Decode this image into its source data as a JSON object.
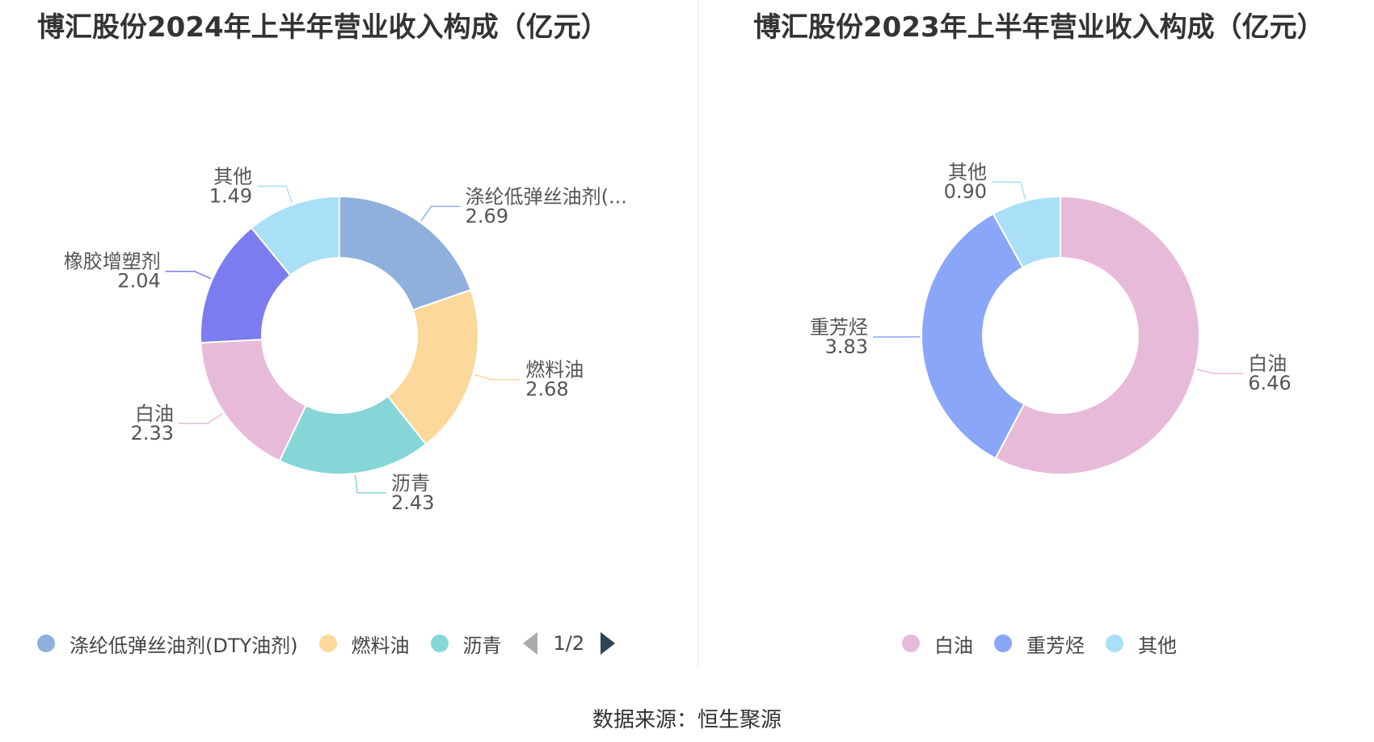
{
  "source_text": "数据来源：恒生聚源",
  "chart_data": [
    {
      "type": "pie",
      "title": "博汇股份2024年上半年营业收入构成（亿元）",
      "unit": "亿元",
      "slices": [
        {
          "name": "涤纶低弹丝油剂(DTY油剂)",
          "label": "涤纶低弹丝油剂(...",
          "value": 2.69,
          "value_text": "2.69",
          "color": "#8fb0dc"
        },
        {
          "name": "燃料油",
          "label": "燃料油",
          "value": 2.68,
          "value_text": "2.68",
          "color": "#fcd89b"
        },
        {
          "name": "沥青",
          "label": "沥青",
          "value": 2.43,
          "value_text": "2.43",
          "color": "#86d6d8"
        },
        {
          "name": "白油",
          "label": "白油",
          "value": 2.33,
          "value_text": "2.33",
          "color": "#e8bad9"
        },
        {
          "name": "橡胶增塑剂",
          "label": "橡胶增塑剂",
          "value": 2.04,
          "value_text": "2.04",
          "color": "#7b7cf0"
        },
        {
          "name": "其他",
          "label": "其他",
          "value": 1.49,
          "value_text": "1.49",
          "color": "#a9dff7"
        }
      ],
      "legend": {
        "items": [
          {
            "label": "涤纶低弹丝油剂(DTY油剂)",
            "color": "#8fb0dc"
          },
          {
            "label": "燃料油",
            "color": "#fcd89b"
          },
          {
            "label": "沥青",
            "color": "#86d6d8"
          }
        ],
        "page": "1/2"
      }
    },
    {
      "type": "pie",
      "title": "博汇股份2023年上半年营业收入构成（亿元）",
      "unit": "亿元",
      "slices": [
        {
          "name": "白油",
          "label": "白油",
          "value": 6.46,
          "value_text": "6.46",
          "color": "#e8bad9"
        },
        {
          "name": "重芳烃",
          "label": "重芳烃",
          "value": 3.83,
          "value_text": "3.83",
          "color": "#8aa6f8"
        },
        {
          "name": "其他",
          "label": "其他",
          "value": 0.9,
          "value_text": "0.90",
          "color": "#a9dff7"
        }
      ],
      "legend": {
        "items": [
          {
            "label": "白油",
            "color": "#e8bad9"
          },
          {
            "label": "重芳烃",
            "color": "#8aa6f8"
          },
          {
            "label": "其他",
            "color": "#a9dff7"
          }
        ]
      }
    }
  ]
}
